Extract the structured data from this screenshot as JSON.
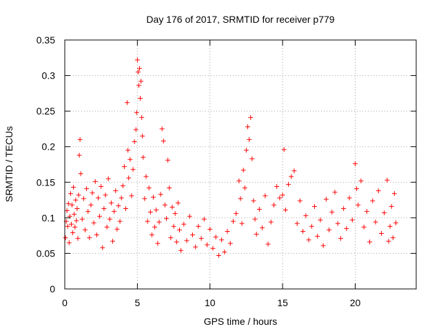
{
  "chart_data": {
    "type": "scatter",
    "title": "Day 176 of 2017, SRMTID for receiver p779",
    "xlabel": "GPS time / hours",
    "ylabel": "SRMTID / TECUs",
    "xlim": [
      0,
      24.2
    ],
    "ylim": [
      0,
      0.35
    ],
    "xticks": [
      0,
      5,
      10,
      15,
      20
    ],
    "xtick_labels": [
      "0",
      "5",
      "10",
      "15",
      "20"
    ],
    "yticks": [
      0,
      0.05,
      0.1,
      0.15,
      0.2,
      0.25,
      0.3,
      0.35
    ],
    "ytick_labels": [
      "0",
      "0.05",
      "0.1",
      "0.15",
      "0.2",
      "0.25",
      "0.3",
      "0.35"
    ],
    "grid": true,
    "marker": "+",
    "color": "#ff0000",
    "series": [
      {
        "name": "SRMTID",
        "points": [
          [
            0.05,
            0.072
          ],
          [
            0.1,
            0.095
          ],
          [
            0.15,
            0.11
          ],
          [
            0.2,
            0.088
          ],
          [
            0.25,
            0.12
          ],
          [
            0.3,
            0.065
          ],
          [
            0.35,
            0.102
          ],
          [
            0.4,
            0.134
          ],
          [
            0.45,
            0.091
          ],
          [
            0.5,
            0.118
          ],
          [
            0.55,
            0.079
          ],
          [
            0.6,
            0.143
          ],
          [
            0.65,
            0.105
          ],
          [
            0.7,
            0.087
          ],
          [
            0.75,
            0.125
          ],
          [
            0.8,
            0.096
          ],
          [
            0.85,
            0.113
          ],
          [
            0.9,
            0.071
          ],
          [
            0.95,
            0.132
          ],
          [
            1.0,
            0.188
          ],
          [
            1.05,
            0.21
          ],
          [
            1.1,
            0.162
          ],
          [
            1.2,
            0.098
          ],
          [
            1.3,
            0.127
          ],
          [
            1.4,
            0.083
          ],
          [
            1.5,
            0.141
          ],
          [
            1.6,
            0.109
          ],
          [
            1.7,
            0.072
          ],
          [
            1.8,
            0.118
          ],
          [
            1.9,
            0.135
          ],
          [
            2.0,
            0.093
          ],
          [
            2.1,
            0.151
          ],
          [
            2.2,
            0.076
          ],
          [
            2.3,
            0.128
          ],
          [
            2.4,
            0.102
          ],
          [
            2.5,
            0.144
          ],
          [
            2.6,
            0.058
          ],
          [
            2.7,
            0.113
          ],
          [
            2.8,
            0.132
          ],
          [
            2.9,
            0.087
          ],
          [
            3.0,
            0.155
          ],
          [
            3.1,
            0.098
          ],
          [
            3.2,
            0.121
          ],
          [
            3.3,
            0.067
          ],
          [
            3.4,
            0.109
          ],
          [
            3.5,
            0.138
          ],
          [
            3.6,
            0.084
          ],
          [
            3.7,
            0.117
          ],
          [
            3.8,
            0.095
          ],
          [
            3.9,
            0.128
          ],
          [
            4.0,
            0.145
          ],
          [
            4.1,
            0.172
          ],
          [
            4.2,
            0.113
          ],
          [
            4.3,
            0.262
          ],
          [
            4.35,
            0.195
          ],
          [
            4.4,
            0.156
          ],
          [
            4.5,
            0.182
          ],
          [
            4.6,
            0.131
          ],
          [
            4.7,
            0.168
          ],
          [
            4.8,
            0.207
          ],
          [
            4.9,
            0.224
          ],
          [
            4.95,
            0.248
          ],
          [
            5.0,
            0.322
          ],
          [
            5.05,
            0.305
          ],
          [
            5.1,
            0.286
          ],
          [
            5.15,
            0.31
          ],
          [
            5.2,
            0.268
          ],
          [
            5.25,
            0.292
          ],
          [
            5.3,
            0.241
          ],
          [
            5.35,
            0.215
          ],
          [
            5.4,
            0.185
          ],
          [
            5.5,
            0.127
          ],
          [
            5.6,
            0.158
          ],
          [
            5.7,
            0.095
          ],
          [
            5.8,
            0.142
          ],
          [
            5.9,
            0.108
          ],
          [
            6.0,
            0.076
          ],
          [
            6.1,
            0.129
          ],
          [
            6.2,
            0.087
          ],
          [
            6.3,
            0.111
          ],
          [
            6.4,
            0.064
          ],
          [
            6.5,
            0.094
          ],
          [
            6.6,
            0.133
          ],
          [
            6.7,
            0.225
          ],
          [
            6.8,
            0.208
          ],
          [
            6.9,
            0.118
          ],
          [
            7.0,
            0.099
          ],
          [
            7.1,
            0.181
          ],
          [
            7.2,
            0.142
          ],
          [
            7.3,
            0.072
          ],
          [
            7.4,
            0.115
          ],
          [
            7.5,
            0.088
          ],
          [
            7.6,
            0.106
          ],
          [
            7.7,
            0.066
          ],
          [
            7.8,
            0.121
          ],
          [
            7.9,
            0.083
          ],
          [
            8.0,
            0.054
          ],
          [
            8.2,
            0.091
          ],
          [
            8.4,
            0.068
          ],
          [
            8.6,
            0.102
          ],
          [
            8.8,
            0.076
          ],
          [
            9.0,
            0.059
          ],
          [
            9.2,
            0.088
          ],
          [
            9.4,
            0.071
          ],
          [
            9.6,
            0.098
          ],
          [
            9.8,
            0.062
          ],
          [
            10.0,
            0.084
          ],
          [
            10.2,
            0.057
          ],
          [
            10.4,
            0.073
          ],
          [
            10.6,
            0.047
          ],
          [
            10.8,
            0.069
          ],
          [
            11.0,
            0.052
          ],
          [
            11.2,
            0.081
          ],
          [
            11.4,
            0.064
          ],
          [
            11.6,
            0.095
          ],
          [
            11.8,
            0.106
          ],
          [
            12.0,
            0.152
          ],
          [
            12.1,
            0.127
          ],
          [
            12.2,
            0.092
          ],
          [
            12.3,
            0.167
          ],
          [
            12.4,
            0.142
          ],
          [
            12.5,
            0.195
          ],
          [
            12.6,
            0.228
          ],
          [
            12.7,
            0.21
          ],
          [
            12.8,
            0.241
          ],
          [
            12.9,
            0.183
          ],
          [
            13.0,
            0.124
          ],
          [
            13.1,
            0.098
          ],
          [
            13.2,
            0.077
          ],
          [
            13.4,
            0.112
          ],
          [
            13.6,
            0.086
          ],
          [
            13.8,
            0.131
          ],
          [
            14.0,
            0.063
          ],
          [
            14.2,
            0.094
          ],
          [
            14.4,
            0.118
          ],
          [
            14.6,
            0.144
          ],
          [
            14.8,
            0.128
          ],
          [
            15.0,
            0.132
          ],
          [
            15.1,
            0.196
          ],
          [
            15.2,
            0.111
          ],
          [
            15.4,
            0.147
          ],
          [
            15.6,
            0.158
          ],
          [
            15.8,
            0.166
          ],
          [
            16.0,
            0.092
          ],
          [
            16.2,
            0.124
          ],
          [
            16.4,
            0.081
          ],
          [
            16.6,
            0.103
          ],
          [
            16.8,
            0.069
          ],
          [
            17.0,
            0.088
          ],
          [
            17.2,
            0.116
          ],
          [
            17.4,
            0.074
          ],
          [
            17.6,
            0.097
          ],
          [
            17.8,
            0.061
          ],
          [
            18.0,
            0.126
          ],
          [
            18.2,
            0.083
          ],
          [
            18.4,
            0.108
          ],
          [
            18.6,
            0.136
          ],
          [
            18.8,
            0.092
          ],
          [
            19.0,
            0.071
          ],
          [
            19.2,
            0.113
          ],
          [
            19.4,
            0.085
          ],
          [
            19.6,
            0.128
          ],
          [
            19.8,
            0.097
          ],
          [
            20.0,
            0.176
          ],
          [
            20.1,
            0.141
          ],
          [
            20.2,
            0.118
          ],
          [
            20.4,
            0.152
          ],
          [
            20.6,
            0.087
          ],
          [
            20.8,
            0.109
          ],
          [
            21.0,
            0.066
          ],
          [
            21.2,
            0.124
          ],
          [
            21.4,
            0.094
          ],
          [
            21.6,
            0.138
          ],
          [
            21.8,
            0.078
          ],
          [
            22.0,
            0.107
          ],
          [
            22.2,
            0.153
          ],
          [
            22.3,
            0.067
          ],
          [
            22.4,
            0.088
          ],
          [
            22.5,
            0.116
          ],
          [
            22.6,
            0.072
          ],
          [
            22.7,
            0.134
          ],
          [
            22.8,
            0.093
          ]
        ]
      }
    ]
  }
}
